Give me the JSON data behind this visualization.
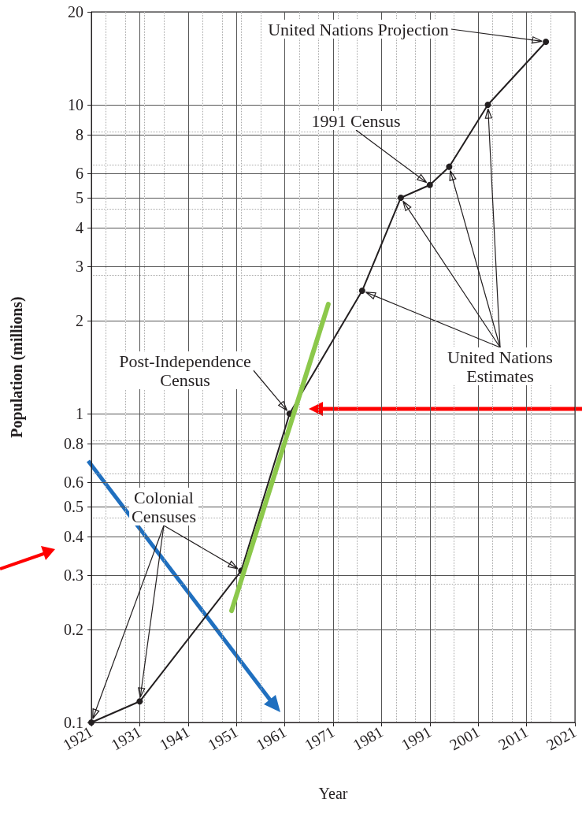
{
  "chart_data": {
    "type": "line",
    "xlabel": "Year",
    "ylabel": "Population (millions)",
    "x": [
      1921,
      1931,
      1952,
      1962,
      1977,
      1985,
      1991,
      1995,
      2003,
      2015
    ],
    "series": [
      {
        "color": "#231f20",
        "values": [
          0.1,
          0.117,
          0.31,
          1.0,
          2.5,
          5.0,
          5.5,
          6.3,
          10,
          16
        ],
        "marker": "circle"
      },
      {
        "type": "line",
        "color": "#8cc84b",
        "x": [
          1950,
          1970
        ],
        "values": [
          0.23,
          2.26
        ],
        "marker": "none"
      }
    ],
    "xlim": [
      1921,
      2021
    ],
    "xticks": [
      1921,
      1931,
      1941,
      1951,
      1961,
      1971,
      1981,
      1991,
      2001,
      2011,
      2021
    ],
    "ylim": [
      0.1,
      20
    ],
    "yticks": [
      0.1,
      0.2,
      0.3,
      0.4,
      0.5,
      0.6,
      0.8,
      1,
      2,
      3,
      4,
      5,
      6,
      8,
      10,
      20
    ],
    "log": "y",
    "grid": true,
    "annotations": [
      {
        "text": "United Nations Projection",
        "x": 2015,
        "y": 16
      },
      {
        "text": "1991 Census",
        "x": 1991,
        "y": 5.5
      },
      {
        "text": "United Nations\nEstimates",
        "x": 1985,
        "y": 5.0
      },
      {
        "text": "Post-Independence\nCensus",
        "x": 1962,
        "y": 1.0
      },
      {
        "text": "Colonial\nCensuses",
        "x": 1952,
        "y": 0.31
      }
    ]
  }
}
